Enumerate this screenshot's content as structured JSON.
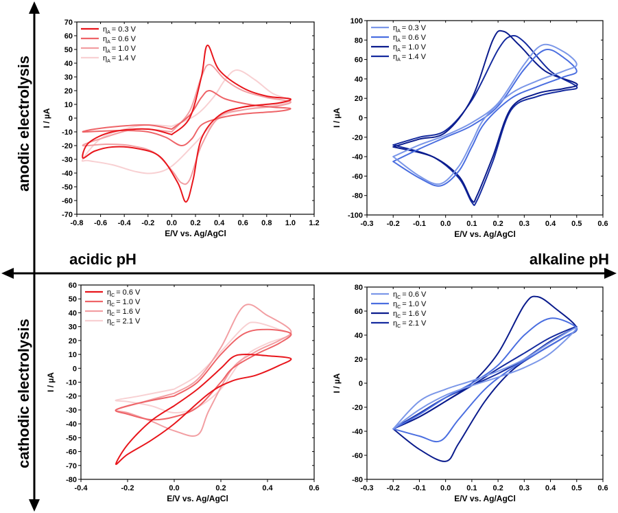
{
  "labels": {
    "anodic": "anodic electrolysis",
    "cathodic": "cathodic electrolysis",
    "acidic": "acidic pH",
    "alkaline": "alkaline pH"
  },
  "chart_data": [
    {
      "id": "acidic-anodic",
      "type": "line",
      "xlabel": "E/V vs. Ag/AgCl",
      "ylabel": "I / µA",
      "xlim": [
        -0.8,
        1.2
      ],
      "ylim": [
        -70,
        70
      ],
      "xticks": [
        -0.8,
        -0.6,
        -0.4,
        -0.2,
        0.0,
        0.2,
        0.4,
        0.6,
        0.8,
        1.0,
        1.2
      ],
      "xtick_labels": [
        "-0.8",
        "-0.6",
        "-0.4",
        "-0.2",
        "0.0",
        "0.2",
        "0.4",
        "0.6",
        "0.8",
        "1.0",
        "1.2"
      ],
      "yticks": [
        -70,
        -60,
        -50,
        -40,
        -30,
        -20,
        -10,
        0,
        10,
        20,
        30,
        40,
        50,
        60,
        70
      ],
      "ytick_labels": [
        "-70",
        "-60",
        "-50",
        "-40",
        "-30",
        "-20",
        "-10",
        "0",
        "10",
        "20",
        "30",
        "40",
        "50",
        "60",
        "70"
      ],
      "legend": {
        "position": "top-left",
        "symbol": "η",
        "sub": "A"
      },
      "series": [
        {
          "name": "0.3 V",
          "label_value": "= 0.3 V",
          "color": "#e8151b",
          "x": [
            0.0,
            0.15,
            0.25,
            0.3,
            0.4,
            0.6,
            0.8,
            1.0,
            0.9,
            0.6,
            0.4,
            0.25,
            0.18,
            0.12,
            0.05,
            -0.1,
            -0.3,
            -0.5,
            -0.65,
            -0.75,
            -0.7,
            -0.5,
            -0.2,
            0.0
          ],
          "y": [
            -12,
            0,
            30,
            53,
            35,
            22,
            16,
            14,
            11,
            8,
            2,
            -15,
            -45,
            -61,
            -47,
            -28,
            -22,
            -21,
            -24,
            -29,
            -18,
            -10,
            -8,
            -12
          ]
        },
        {
          "name": "0.6 V",
          "label_value": "= 0.6 V",
          "color": "#ee6468",
          "x": [
            0.0,
            0.15,
            0.25,
            0.32,
            0.45,
            0.65,
            0.85,
            1.0,
            0.9,
            0.6,
            0.4,
            0.25,
            0.17,
            0.08,
            -0.05,
            -0.2,
            -0.4,
            -0.6,
            -0.75,
            -0.65,
            -0.45,
            -0.2,
            0.0
          ],
          "y": [
            -8,
            2,
            15,
            20,
            14,
            10,
            8,
            7,
            5,
            3,
            0,
            -5,
            -15,
            -20,
            -14,
            -10,
            -9,
            -9.5,
            -10,
            -8,
            -6,
            -5,
            -8
          ]
        },
        {
          "name": "1.0 V",
          "label_value": "= 1.0 V",
          "color": "#f29ea2",
          "x": [
            0.0,
            0.15,
            0.25,
            0.32,
            0.45,
            0.6,
            0.8,
            1.0,
            0.9,
            0.6,
            0.4,
            0.25,
            0.15,
            0.08,
            0.0,
            -0.15,
            -0.35,
            -0.55,
            -0.75,
            -0.6,
            -0.3,
            0.0
          ],
          "y": [
            -10,
            5,
            30,
            39,
            28,
            20,
            15,
            12,
            9,
            6,
            1,
            -20,
            -45,
            -47,
            -38,
            -25,
            -20,
            -19,
            -20,
            -15,
            -8,
            -10
          ]
        },
        {
          "name": "1.4 V",
          "label_value": "= 1.4 V",
          "color": "#f8d0d2",
          "x": [
            0.0,
            0.2,
            0.35,
            0.45,
            0.55,
            0.7,
            0.85,
            1.0,
            0.9,
            0.6,
            0.4,
            0.2,
            0.0,
            -0.15,
            -0.3,
            -0.5,
            -0.7,
            -0.75,
            -0.6,
            -0.4,
            -0.2,
            0.0
          ],
          "y": [
            -6,
            2,
            15,
            28,
            35,
            28,
            18,
            13,
            10,
            6,
            0,
            -18,
            -35,
            -40,
            -39,
            -34,
            -31,
            -30,
            -15,
            -8,
            -5,
            -6
          ]
        }
      ]
    },
    {
      "id": "alkaline-anodic",
      "type": "line",
      "xlabel": "E/V vs. Ag/AgCl",
      "ylabel": "I / µA",
      "xlim": [
        -0.3,
        0.6
      ],
      "ylim": [
        -100,
        100
      ],
      "xticks": [
        -0.3,
        -0.2,
        -0.1,
        0.0,
        0.1,
        0.2,
        0.3,
        0.4,
        0.5,
        0.6
      ],
      "xtick_labels": [
        "-0.3",
        "-0.2",
        "-0.1",
        "0.0",
        "0.1",
        "0.2",
        "0.3",
        "0.4",
        "0.5",
        "0.6"
      ],
      "yticks": [
        -100,
        -80,
        -60,
        -40,
        -20,
        0,
        20,
        40,
        60,
        80,
        100
      ],
      "ytick_labels": [
        "-100",
        "-80",
        "-60",
        "-40",
        "-20",
        "0",
        "20",
        "40",
        "60",
        "80",
        "100"
      ],
      "legend": {
        "position": "top-left",
        "symbol": "η",
        "sub": "A"
      },
      "series": [
        {
          "name": "0.3 V",
          "label_value": "= 0.3 V",
          "color": "#7b97e8",
          "x": [
            -0.2,
            -0.1,
            0.0,
            0.1,
            0.2,
            0.3,
            0.37,
            0.45,
            0.5,
            0.45,
            0.35,
            0.25,
            0.15,
            0.1,
            0.05,
            -0.02,
            -0.1,
            -0.2
          ],
          "y": [
            -40,
            -28,
            -18,
            -5,
            15,
            55,
            75,
            68,
            55,
            48,
            38,
            25,
            0,
            -25,
            -50,
            -68,
            -60,
            -40
          ]
        },
        {
          "name": "0.6 V",
          "label_value": "= 0.6 V",
          "color": "#4a6ee0",
          "x": [
            -0.2,
            -0.1,
            0.0,
            0.1,
            0.2,
            0.3,
            0.38,
            0.45,
            0.5,
            0.45,
            0.35,
            0.25,
            0.15,
            0.1,
            0.05,
            -0.02,
            -0.1,
            -0.2
          ],
          "y": [
            -45,
            -32,
            -20,
            -8,
            12,
            50,
            70,
            62,
            48,
            42,
            32,
            20,
            -5,
            -30,
            -55,
            -70,
            -62,
            -45
          ]
        },
        {
          "name": "1.0 V",
          "label_value": "= 1.0 V",
          "color": "#0a1b8c",
          "x": [
            -0.2,
            -0.1,
            0.0,
            0.1,
            0.18,
            0.22,
            0.28,
            0.38,
            0.5,
            0.45,
            0.35,
            0.25,
            0.18,
            0.12,
            0.1,
            0.05,
            -0.05,
            -0.2
          ],
          "y": [
            -30,
            -22,
            -15,
            20,
            80,
            89,
            75,
            48,
            35,
            30,
            25,
            10,
            -40,
            -80,
            -85,
            -60,
            -40,
            -30
          ]
        },
        {
          "name": "1.4 V",
          "label_value": "= 1.4 V",
          "color": "#142a9e",
          "x": [
            -0.2,
            -0.1,
            0.0,
            0.1,
            0.2,
            0.25,
            0.3,
            0.4,
            0.5,
            0.45,
            0.35,
            0.25,
            0.18,
            0.12,
            0.1,
            0.05,
            -0.05,
            -0.2
          ],
          "y": [
            -28,
            -20,
            -13,
            18,
            70,
            84,
            78,
            48,
            32,
            28,
            22,
            8,
            -45,
            -85,
            -87,
            -62,
            -40,
            -28
          ]
        }
      ]
    },
    {
      "id": "acidic-cathodic",
      "type": "line",
      "xlabel": "E/V vs. Ag/AgCl",
      "ylabel": "I / µA",
      "xlim": [
        -0.4,
        0.6
      ],
      "ylim": [
        -80,
        60
      ],
      "xticks": [
        -0.4,
        -0.2,
        0.0,
        0.2,
        0.4,
        0.6
      ],
      "xtick_labels": [
        "-0.4",
        "-0.2",
        "0.0",
        "0.2",
        "0.4",
        "0.6"
      ],
      "yticks": [
        -80,
        -70,
        -60,
        -50,
        -40,
        -30,
        -20,
        -10,
        0,
        10,
        20,
        30,
        40,
        50,
        60
      ],
      "ytick_labels": [
        "-80",
        "-70",
        "-60",
        "-50",
        "-40",
        "-30",
        "-20",
        "-10",
        "0",
        "10",
        "20",
        "30",
        "40",
        "50",
        "60"
      ],
      "legend": {
        "position": "top-left",
        "symbol": "η",
        "sub": "C"
      },
      "series": [
        {
          "name": "0.6 V",
          "label_value": "= 0.6 V",
          "color": "#e8151b",
          "x": [
            0.0,
            0.1,
            0.2,
            0.25,
            0.3,
            0.4,
            0.5,
            0.45,
            0.35,
            0.25,
            0.15,
            0.0,
            -0.1,
            -0.2,
            -0.25,
            -0.2,
            -0.1,
            0.0
          ],
          "y": [
            -27,
            -15,
            0,
            8,
            10,
            9,
            7,
            2,
            -5,
            -9,
            -18,
            -40,
            -52,
            -62,
            -69,
            -55,
            -38,
            -27
          ]
        },
        {
          "name": "1.0 V",
          "label_value": "= 1.0 V",
          "color": "#ee6468",
          "x": [
            0.0,
            0.1,
            0.2,
            0.3,
            0.4,
            0.5,
            0.45,
            0.35,
            0.25,
            0.2,
            0.1,
            0.0,
            -0.1,
            -0.2,
            -0.25,
            -0.15,
            0.0
          ],
          "y": [
            -20,
            -10,
            10,
            25,
            28,
            25,
            18,
            10,
            0,
            -10,
            -28,
            -35,
            -37,
            -33,
            -30,
            -25,
            -20
          ]
        },
        {
          "name": "1.6 V",
          "label_value": "= 1.6 V",
          "color": "#f29ea2",
          "x": [
            0.0,
            0.1,
            0.2,
            0.3,
            0.4,
            0.5,
            0.45,
            0.35,
            0.25,
            0.15,
            0.1,
            0.0,
            -0.1,
            -0.2,
            -0.25,
            -0.15,
            0.0
          ],
          "y": [
            -18,
            -8,
            15,
            45,
            38,
            27,
            20,
            12,
            0,
            -30,
            -48,
            -45,
            -38,
            -32,
            -30,
            -25,
            -18
          ]
        },
        {
          "name": "2.1 V",
          "label_value": "= 2.1 V",
          "color": "#f8d0d2",
          "x": [
            0.0,
            0.1,
            0.2,
            0.3,
            0.35,
            0.45,
            0.5,
            0.4,
            0.3,
            0.2,
            0.1,
            0.0,
            -0.1,
            -0.2,
            -0.25,
            -0.15,
            0.0
          ],
          "y": [
            -15,
            -5,
            12,
            30,
            33,
            28,
            24,
            18,
            8,
            -15,
            -28,
            -32,
            -27,
            -24,
            -23,
            -20,
            -15
          ]
        }
      ]
    },
    {
      "id": "alkaline-cathodic",
      "type": "line",
      "xlabel": "E/V vs. Ag/AgCl",
      "ylabel": "I / µA",
      "xlim": [
        -0.3,
        0.6
      ],
      "ylim": [
        -80,
        80
      ],
      "xticks": [
        -0.3,
        -0.2,
        -0.1,
        0.0,
        0.1,
        0.2,
        0.3,
        0.4,
        0.5,
        0.6
      ],
      "xtick_labels": [
        "-0.3",
        "-0.2",
        "-0.1",
        "0.0",
        "0.1",
        "0.2",
        "0.3",
        "0.4",
        "0.5",
        "0.6"
      ],
      "yticks": [
        -80,
        -60,
        -40,
        -20,
        0,
        20,
        40,
        60,
        80
      ],
      "ytick_labels": [
        "-80",
        "-60",
        "-40",
        "-20",
        "0",
        "20",
        "40",
        "60",
        "80"
      ],
      "legend": {
        "position": "top-left",
        "symbol": "η",
        "sub": "C"
      },
      "series": [
        {
          "name": "0.6 V",
          "label_value": "= 0.6 V",
          "color": "#7b97e8",
          "x": [
            -0.2,
            -0.1,
            0.0,
            0.1,
            0.2,
            0.3,
            0.4,
            0.5,
            0.4,
            0.3,
            0.2,
            0.1,
            0.0,
            -0.1,
            -0.2
          ],
          "y": [
            -38,
            -22,
            -10,
            -2,
            5,
            13,
            25,
            46,
            34,
            20,
            10,
            2,
            -5,
            -15,
            -38
          ]
        },
        {
          "name": "1.0 V",
          "label_value": "= 1.0 V",
          "color": "#4a6ee0",
          "x": [
            -0.2,
            -0.1,
            0.0,
            0.1,
            0.2,
            0.3,
            0.4,
            0.5,
            0.45,
            0.35,
            0.25,
            0.15,
            0.05,
            -0.02,
            -0.1,
            -0.2
          ],
          "y": [
            -38,
            -26,
            -12,
            0,
            15,
            40,
            54,
            46,
            38,
            25,
            12,
            -5,
            -30,
            -48,
            -44,
            -38
          ]
        },
        {
          "name": "1.6 V",
          "label_value": "= 1.6 V",
          "color": "#0a1b8c",
          "x": [
            -0.2,
            -0.1,
            0.0,
            0.1,
            0.2,
            0.3,
            0.35,
            0.42,
            0.5,
            0.45,
            0.35,
            0.25,
            0.15,
            0.05,
            0.0,
            -0.1,
            -0.2
          ],
          "y": [
            -38,
            -28,
            -15,
            0,
            25,
            65,
            72,
            62,
            46,
            38,
            25,
            10,
            -15,
            -50,
            -65,
            -55,
            -38
          ]
        },
        {
          "name": "2.1 V",
          "label_value": "= 2.1 V",
          "color": "#142a9e",
          "x": [
            -0.2,
            -0.1,
            0.0,
            0.1,
            0.2,
            0.3,
            0.4,
            0.5,
            0.4,
            0.3,
            0.2,
            0.1,
            0.0,
            -0.1,
            -0.2
          ],
          "y": [
            -38,
            -25,
            -12,
            -2,
            8,
            20,
            35,
            47,
            38,
            25,
            12,
            -2,
            -15,
            -28,
            -38
          ]
        }
      ]
    }
  ]
}
